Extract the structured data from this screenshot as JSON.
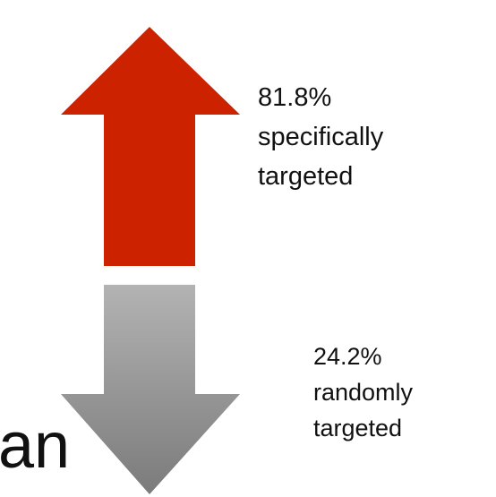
{
  "up": {
    "lines": [
      "81.8%",
      "specifically",
      "targeted"
    ]
  },
  "down": {
    "lines": [
      "24.2%",
      "randomly",
      "targeted"
    ]
  },
  "fragment": "an"
}
